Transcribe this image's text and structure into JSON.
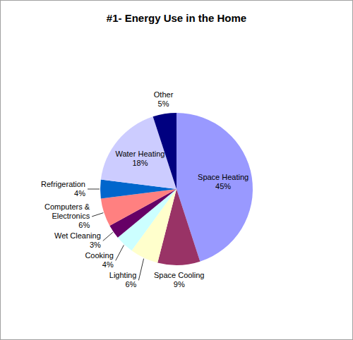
{
  "chart_data": {
    "type": "pie",
    "title": "#1- Energy Use in the Home",
    "categories": [
      "Space Heating",
      "Space Cooling",
      "Lighting",
      "Cooking",
      "Wet Cleaning",
      "Computers & Electronics",
      "Refrigeration",
      "Water Heating",
      "Other"
    ],
    "values": [
      45,
      9,
      6,
      4,
      3,
      6,
      4,
      18,
      5
    ],
    "value_labels": [
      "45%",
      "9%",
      "6%",
      "4%",
      "3%",
      "6%",
      "4%",
      "18%",
      "5%"
    ],
    "colors": [
      "#9999ff",
      "#993366",
      "#ffffcc",
      "#ccffff",
      "#660066",
      "#ff8080",
      "#0066cc",
      "#ccccff",
      "#000080"
    ],
    "data_labels": true
  }
}
